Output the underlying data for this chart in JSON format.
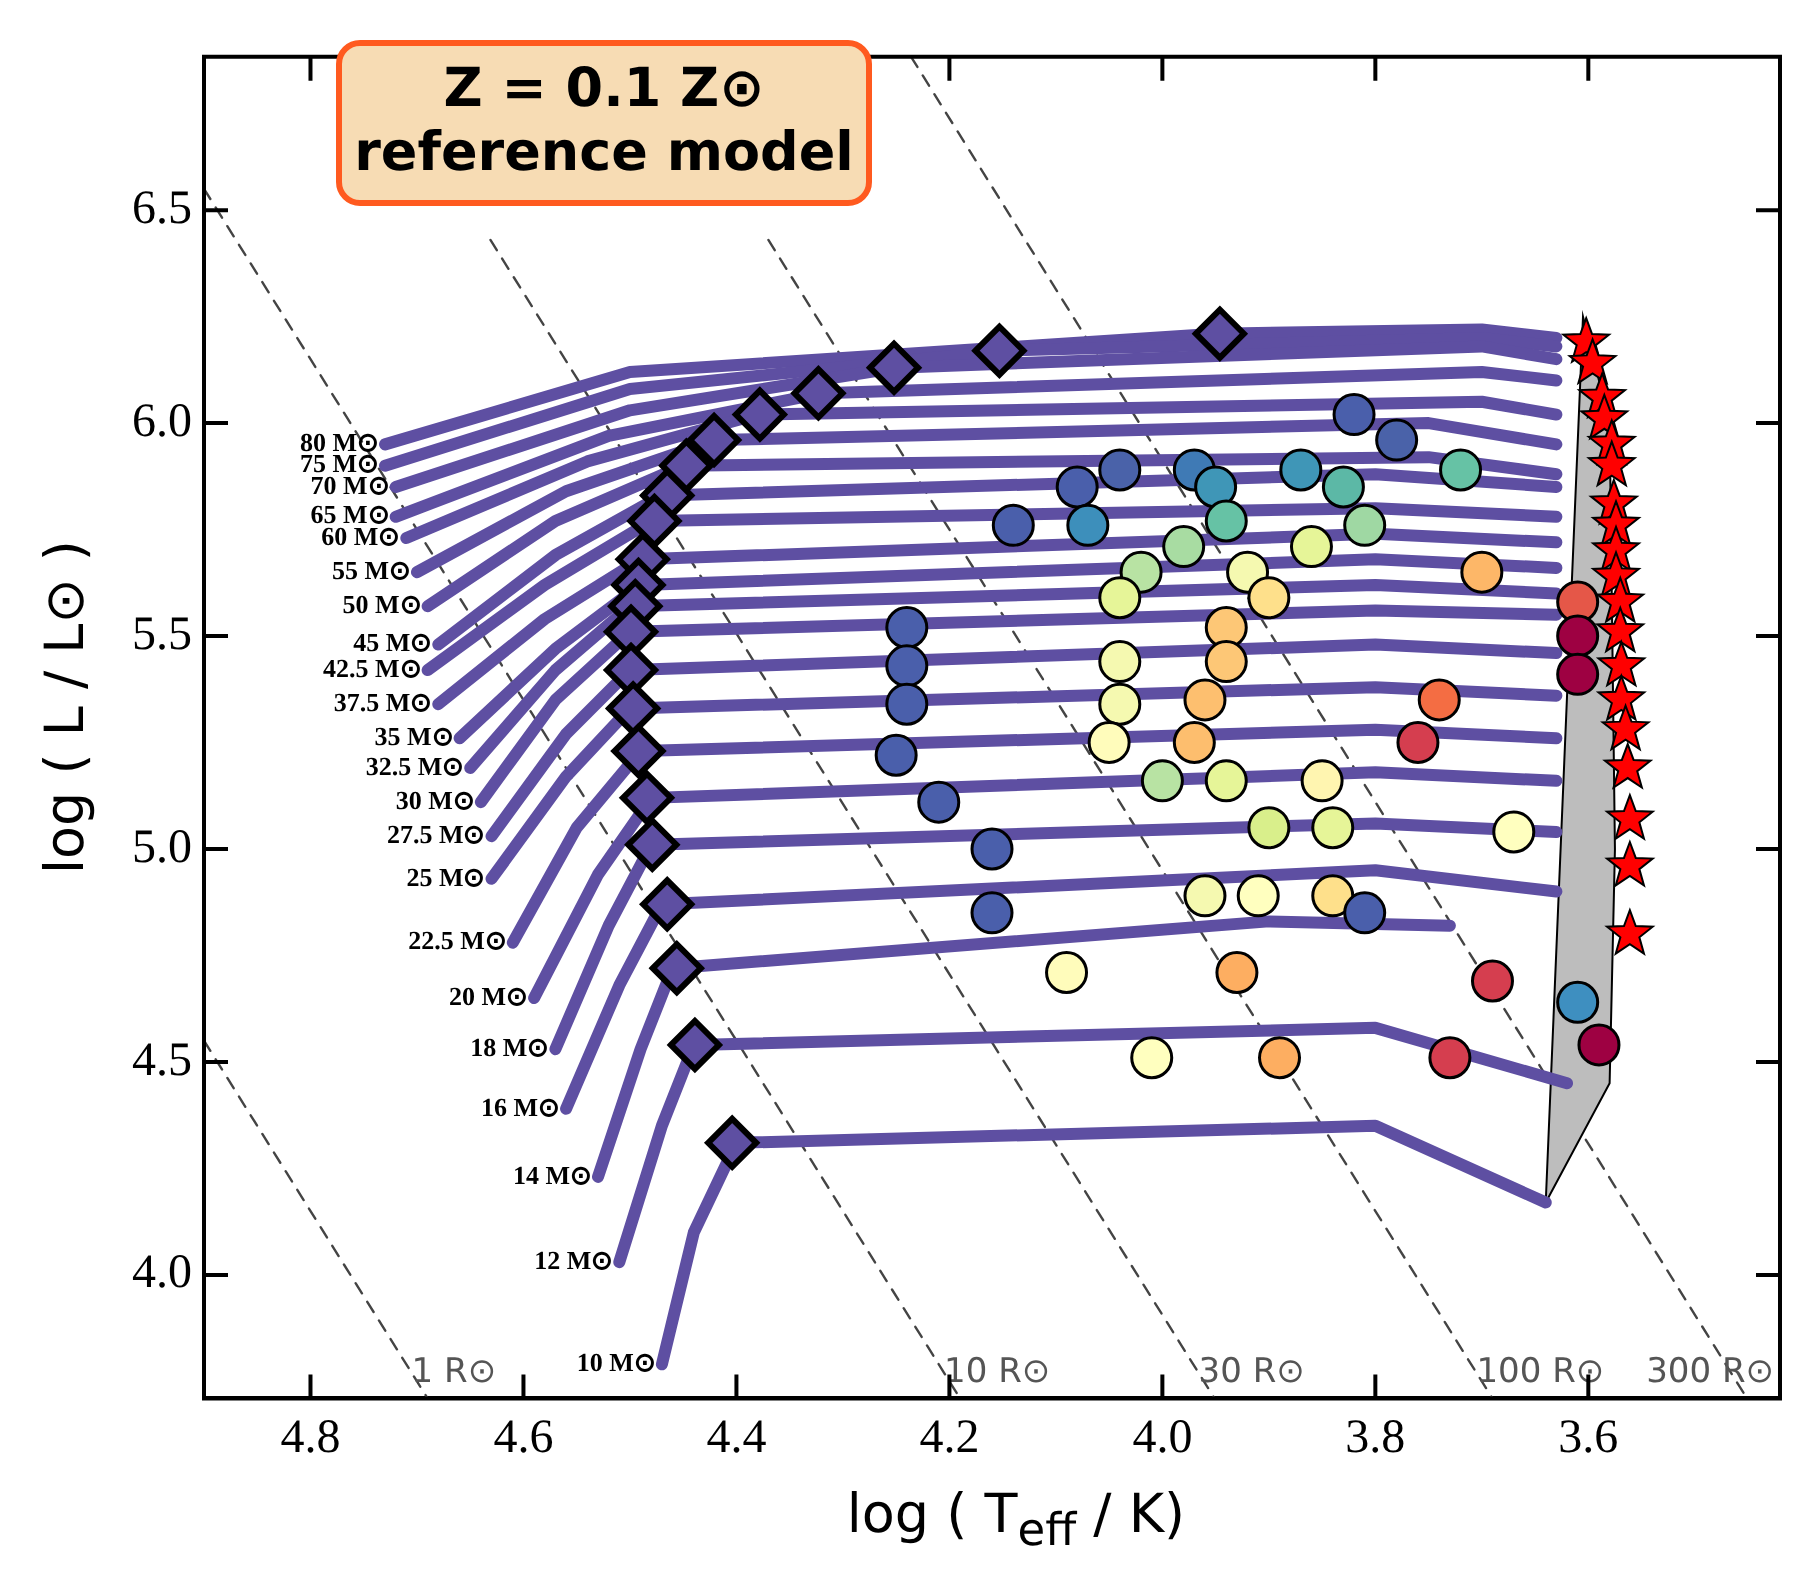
{
  "chart_data": {
    "type": "line",
    "title": "Z = 0.1 Z⊙ reference model",
    "xlabel": "log ( T$_{eff}$ / K)",
    "ylabel": "log ( L / L⊙ )",
    "xlim": [
      4.9,
      3.42
    ],
    "ylim": [
      3.71,
      6.86
    ],
    "xticks": [
      {
        "value": 4.8,
        "label": "4.8"
      },
      {
        "value": 4.6,
        "label": "4.6"
      },
      {
        "value": 4.4,
        "label": "4.4"
      },
      {
        "value": 4.2,
        "label": "4.2"
      },
      {
        "value": 4.0,
        "label": "4.0"
      },
      {
        "value": 3.8,
        "label": "3.8"
      },
      {
        "value": 3.6,
        "label": "3.6"
      }
    ],
    "yticks": [
      {
        "value": 4.0,
        "label": "4.0"
      },
      {
        "value": 4.5,
        "label": "4.5"
      },
      {
        "value": 5.0,
        "label": "5.0"
      },
      {
        "value": 5.5,
        "label": "5.5"
      },
      {
        "value": 6.0,
        "label": "6.0"
      },
      {
        "value": 6.5,
        "label": "6.5"
      }
    ],
    "grid": false,
    "series": [
      {
        "name": "1 R⊙",
        "type": "line",
        "color": "#444444",
        "line_style": "dashed",
        "marker": "none",
        "x": [
          4.9,
          4.69
        ],
        "values": [
          4.55,
          3.71
        ]
      },
      {
        "name": "10 R⊙",
        "type": "line",
        "color": "#444444",
        "line_style": "dashed",
        "marker": "none",
        "x": [
          4.9,
          4.19
        ],
        "values": [
          6.55,
          3.71
        ]
      },
      {
        "name": "30 R⊙",
        "type": "line",
        "color": "#444444",
        "line_style": "dashed",
        "marker": "none",
        "x": [
          4.631,
          3.951
        ],
        "values": [
          6.43,
          3.71
        ]
      },
      {
        "name": "100 R⊙",
        "type": "line",
        "color": "#444444",
        "line_style": "dashed",
        "marker": "none",
        "x": [
          4.37,
          3.69
        ],
        "values": [
          6.43,
          3.71
        ]
      },
      {
        "name": "300 R⊙",
        "type": "line",
        "color": "#444444",
        "line_style": "dashed",
        "marker": "none",
        "x": [
          4.236,
          3.451
        ],
        "values": [
          6.86,
          3.71
        ]
      },
      {
        "type": "area",
        "color": "#bdbdbd",
        "x": [
          3.64,
          3.605,
          3.58,
          3.575,
          3.58,
          3.64
        ],
        "values": [
          4.17,
          6.25,
          6.0,
          5.0,
          4.45,
          4.17
        ]
      },
      {
        "name": "80 M⊙",
        "type": "line",
        "color": "#5e4fa2",
        "line_style": "solid",
        "marker": "none",
        "x": [
          4.73,
          4.5,
          3.95,
          3.7,
          3.63
        ],
        "values": [
          5.95,
          6.12,
          6.21,
          6.22,
          6.2
        ]
      },
      {
        "name": "75 M⊙",
        "type": "line",
        "color": "#5e4fa2",
        "line_style": "solid",
        "marker": "none",
        "x": [
          4.73,
          4.5,
          4.15,
          3.7,
          3.63
        ],
        "values": [
          5.9,
          6.08,
          6.17,
          6.2,
          6.18
        ]
      },
      {
        "name": "70 M⊙",
        "type": "line",
        "color": "#5e4fa2",
        "line_style": "solid",
        "marker": "none",
        "x": [
          4.72,
          4.5,
          4.25,
          3.7,
          3.63
        ],
        "values": [
          5.85,
          6.03,
          6.13,
          6.18,
          6.15
        ]
      },
      {
        "name": "65 M⊙",
        "type": "line",
        "color": "#5e4fa2",
        "line_style": "solid",
        "marker": "none",
        "x": [
          4.72,
          4.52,
          4.32,
          3.7,
          3.63
        ],
        "values": [
          5.78,
          5.97,
          6.07,
          6.12,
          6.1
        ]
      },
      {
        "name": "60 M⊙",
        "type": "line",
        "color": "#5e4fa2",
        "line_style": "solid",
        "marker": "none",
        "x": [
          4.71,
          4.54,
          4.38,
          3.7,
          3.63
        ],
        "values": [
          5.73,
          5.91,
          6.02,
          6.05,
          6.02
        ]
      },
      {
        "name": "55 M⊙",
        "type": "line",
        "color": "#5e4fa2",
        "line_style": "solid",
        "marker": "none",
        "x": [
          4.7,
          4.56,
          4.42,
          3.75,
          3.63
        ],
        "values": [
          5.65,
          5.84,
          5.96,
          6.0,
          5.95
        ]
      },
      {
        "name": "50 M⊙",
        "type": "line",
        "color": "#5e4fa2",
        "line_style": "solid",
        "marker": "none",
        "x": [
          4.69,
          4.57,
          4.45,
          3.75,
          3.63
        ],
        "values": [
          5.57,
          5.77,
          5.9,
          5.92,
          5.88
        ]
      },
      {
        "name": "45 M⊙",
        "type": "line",
        "color": "#5e4fa2",
        "line_style": "solid",
        "marker": "none",
        "x": [
          4.68,
          4.57,
          4.47,
          3.8,
          3.63
        ],
        "values": [
          5.48,
          5.69,
          5.83,
          5.88,
          5.85
        ]
      },
      {
        "name": "42.5 M⊙",
        "type": "line",
        "color": "#5e4fa2",
        "line_style": "solid",
        "marker": "none",
        "x": [
          4.69,
          4.58,
          4.48,
          3.8,
          3.63
        ],
        "values": [
          5.42,
          5.62,
          5.77,
          5.8,
          5.78
        ]
      },
      {
        "name": "37.5 M⊙",
        "type": "line",
        "color": "#5e4fa2",
        "line_style": "solid",
        "marker": "none",
        "x": [
          4.68,
          4.58,
          4.49,
          3.8,
          3.63
        ],
        "values": [
          5.34,
          5.54,
          5.68,
          5.74,
          5.72
        ]
      },
      {
        "name": "35 M⊙",
        "type": "line",
        "color": "#5e4fa2",
        "line_style": "solid",
        "marker": "none",
        "x": [
          4.66,
          4.57,
          4.49,
          3.8,
          3.63
        ],
        "values": [
          5.26,
          5.47,
          5.62,
          5.68,
          5.66
        ]
      },
      {
        "name": "32.5 M⊙",
        "type": "line",
        "color": "#5e4fa2",
        "line_style": "solid",
        "marker": "none",
        "x": [
          4.65,
          4.57,
          4.5,
          3.8,
          3.63
        ],
        "values": [
          5.19,
          5.42,
          5.57,
          5.62,
          5.6
        ]
      },
      {
        "name": "30 M⊙",
        "type": "line",
        "color": "#5e4fa2",
        "line_style": "solid",
        "marker": "none",
        "x": [
          4.64,
          4.57,
          4.5,
          3.8,
          3.63
        ],
        "values": [
          5.11,
          5.35,
          5.51,
          5.56,
          5.55
        ]
      },
      {
        "name": "27.5 M⊙",
        "type": "line",
        "color": "#5e4fa2",
        "line_style": "solid",
        "marker": "none",
        "x": [
          4.63,
          4.56,
          4.5,
          3.8,
          3.63
        ],
        "values": [
          5.03,
          5.27,
          5.42,
          5.48,
          5.46
        ]
      },
      {
        "name": "25 M⊙",
        "type": "line",
        "color": "#5e4fa2",
        "line_style": "solid",
        "marker": "none",
        "x": [
          4.63,
          4.56,
          4.5,
          3.8,
          3.63
        ],
        "values": [
          4.93,
          5.17,
          5.33,
          5.38,
          5.36
        ]
      },
      {
        "name": "22.5 M⊙",
        "type": "line",
        "color": "#5e4fa2",
        "line_style": "solid",
        "marker": "none",
        "x": [
          4.61,
          4.55,
          4.49,
          3.8,
          3.63
        ],
        "values": [
          4.78,
          5.05,
          5.23,
          5.28,
          5.26
        ]
      },
      {
        "name": "20 M⊙",
        "type": "line",
        "color": "#5e4fa2",
        "line_style": "solid",
        "marker": "none",
        "x": [
          4.59,
          4.53,
          4.48,
          3.8,
          3.63
        ],
        "values": [
          4.65,
          4.94,
          5.12,
          5.18,
          5.16
        ]
      },
      {
        "name": "18 M⊙",
        "type": "line",
        "color": "#5e4fa2",
        "line_style": "solid",
        "marker": "none",
        "x": [
          4.57,
          4.52,
          4.48,
          3.8,
          3.63
        ],
        "values": [
          4.53,
          4.82,
          5.01,
          5.06,
          5.04
        ]
      },
      {
        "name": "16 M⊙",
        "type": "line",
        "color": "#5e4fa2",
        "line_style": "solid",
        "marker": "none",
        "x": [
          4.56,
          4.51,
          4.47,
          3.8,
          3.63
        ],
        "values": [
          4.39,
          4.68,
          4.87,
          4.95,
          4.9
        ]
      },
      {
        "name": "14 M⊙",
        "type": "line",
        "color": "#5e4fa2",
        "line_style": "solid",
        "marker": "none",
        "x": [
          4.53,
          4.49,
          4.46,
          3.9,
          3.73
        ],
        "values": [
          4.23,
          4.53,
          4.72,
          4.83,
          4.82
        ]
      },
      {
        "name": "12 M⊙",
        "type": "line",
        "color": "#5e4fa2",
        "line_style": "solid",
        "marker": "none",
        "x": [
          4.51,
          4.47,
          4.44,
          3.8,
          3.62
        ],
        "values": [
          4.03,
          4.35,
          4.54,
          4.58,
          4.45
        ]
      },
      {
        "name": "10 M⊙",
        "type": "line",
        "color": "#5e4fa2",
        "line_style": "solid",
        "marker": "none",
        "x": [
          4.47,
          4.44,
          4.4,
          3.8,
          3.64
        ],
        "values": [
          3.79,
          4.1,
          4.31,
          4.35,
          4.17
        ]
      },
      {
        "type": "scatter",
        "marker": "circle",
        "x": [
          3.82,
          3.78,
          4.04,
          3.97,
          3.87,
          3.72,
          3.83,
          3.95,
          4.08,
          4.14,
          4.07,
          3.94,
          3.81,
          3.98,
          3.86,
          3.92,
          3.7,
          3.9,
          4.02,
          3.94,
          3.94,
          3.61,
          3.61,
          3.61,
          4.24,
          4.24,
          4.24,
          4.25,
          4.21,
          4.16,
          4.16,
          4.09,
          4.01,
          4.04,
          4.04,
          4.04,
          3.96,
          3.74,
          4.05,
          3.97,
          3.76,
          4.0,
          3.94,
          3.85,
          3.9,
          3.84,
          3.67,
          3.96,
          3.91,
          3.84,
          3.81,
          3.93,
          3.69,
          3.89,
          3.73,
          3.61,
          3.59
        ],
        "values": [
          6.02,
          5.96,
          5.89,
          5.89,
          5.89,
          5.89,
          5.85,
          5.85,
          5.85,
          5.76,
          5.76,
          5.77,
          5.76,
          5.71,
          5.71,
          5.65,
          5.65,
          5.59,
          5.65,
          5.52,
          5.44,
          5.58,
          5.5,
          5.41,
          5.52,
          5.43,
          5.34,
          5.22,
          5.11,
          5.0,
          4.85,
          4.71,
          4.51,
          5.59,
          5.44,
          5.34,
          5.35,
          5.35,
          5.25,
          5.25,
          5.25,
          5.16,
          5.16,
          5.16,
          5.05,
          5.05,
          5.04,
          4.89,
          4.89,
          4.89,
          4.85,
          4.71,
          4.69,
          4.51,
          4.51,
          4.64,
          4.54
        ],
        "colors": [
          "#4a5fab",
          "#4a62a9",
          "#4a62a9",
          "#3f7ab5",
          "#3f96b7",
          "#66c2a5",
          "#5cb8a6",
          "#3f96b7",
          "#4a5fab",
          "#4a5fab",
          "#3d8fbb",
          "#66c2a5",
          "#9fd8a3",
          "#a8dca2",
          "#e6f598",
          "#f5f9b0",
          "#fdb768",
          "#fee08b",
          "#b8e3a3",
          "#fdc776",
          "#fdc776",
          "#e55748",
          "#9e0142",
          "#9e0142",
          "#4a5fab",
          "#4a5fab",
          "#4a5fab",
          "#4a5fab",
          "#4a5fab",
          "#4a5fab",
          "#4a5fab",
          "#fffcbb",
          "#ffffbf",
          "#e6f598",
          "#f5f9b0",
          "#f5f9b0",
          "#fdbf6f",
          "#f46d43",
          "#fffcbb",
          "#fdbe6e",
          "#d53e4f",
          "#b8e3a3",
          "#e6f598",
          "#fff5b0",
          "#d9ef8b",
          "#e6f598",
          "#ffffbf",
          "#f5f9b0",
          "#ffffbf",
          "#fee08b",
          "#4a5fab",
          "#fdae61",
          "#d53e4f",
          "#fdae61",
          "#d53e4f",
          "#3e8fc0",
          "#9e0142"
        ]
      },
      {
        "type": "scatter",
        "marker": "diamond",
        "color": "#5e4fa2",
        "x": [
          3.946,
          4.153,
          4.252,
          4.323,
          4.378,
          4.421,
          4.447,
          4.465,
          4.477,
          4.488,
          4.492,
          4.495,
          4.499,
          4.499,
          4.497,
          4.492,
          4.484,
          4.479,
          4.465,
          4.456,
          4.439,
          4.404
        ],
        "values": [
          6.21,
          6.17,
          6.13,
          6.07,
          6.02,
          5.96,
          5.9,
          5.83,
          5.77,
          5.68,
          5.62,
          5.57,
          5.51,
          5.42,
          5.33,
          5.23,
          5.12,
          5.01,
          4.87,
          4.72,
          4.54,
          4.31
        ]
      },
      {
        "type": "scatter",
        "marker": "star",
        "color": "#ff0000",
        "x": [
          3.602,
          3.596,
          3.587,
          3.585,
          3.578,
          3.578,
          3.576,
          3.574,
          3.574,
          3.574,
          3.57,
          3.57,
          3.569,
          3.569,
          3.565,
          3.563,
          3.561,
          3.561,
          3.561
        ],
        "values": [
          6.19,
          6.14,
          6.06,
          6.01,
          5.95,
          5.9,
          5.81,
          5.76,
          5.7,
          5.64,
          5.58,
          5.51,
          5.43,
          5.35,
          5.28,
          5.19,
          5.07,
          4.96,
          4.8
        ]
      }
    ]
  }
}
